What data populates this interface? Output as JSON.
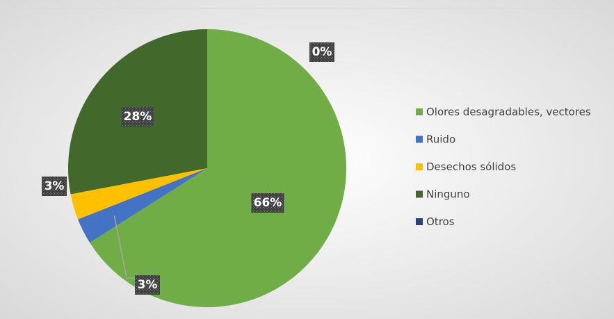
{
  "chart_data": {
    "type": "pie",
    "categories": [
      "Olores desagradables, vectores",
      "Ruido",
      "Desechos sólidos",
      "Ninguno",
      "Otros"
    ],
    "values": [
      66,
      3,
      3,
      28,
      0
    ],
    "value_labels": [
      "66%",
      "3%",
      "3%",
      "28%",
      "0%"
    ],
    "colors": [
      "#70ad47",
      "#4472c4",
      "#ffc000",
      "#43682b",
      "#264478"
    ],
    "legend": "right"
  }
}
